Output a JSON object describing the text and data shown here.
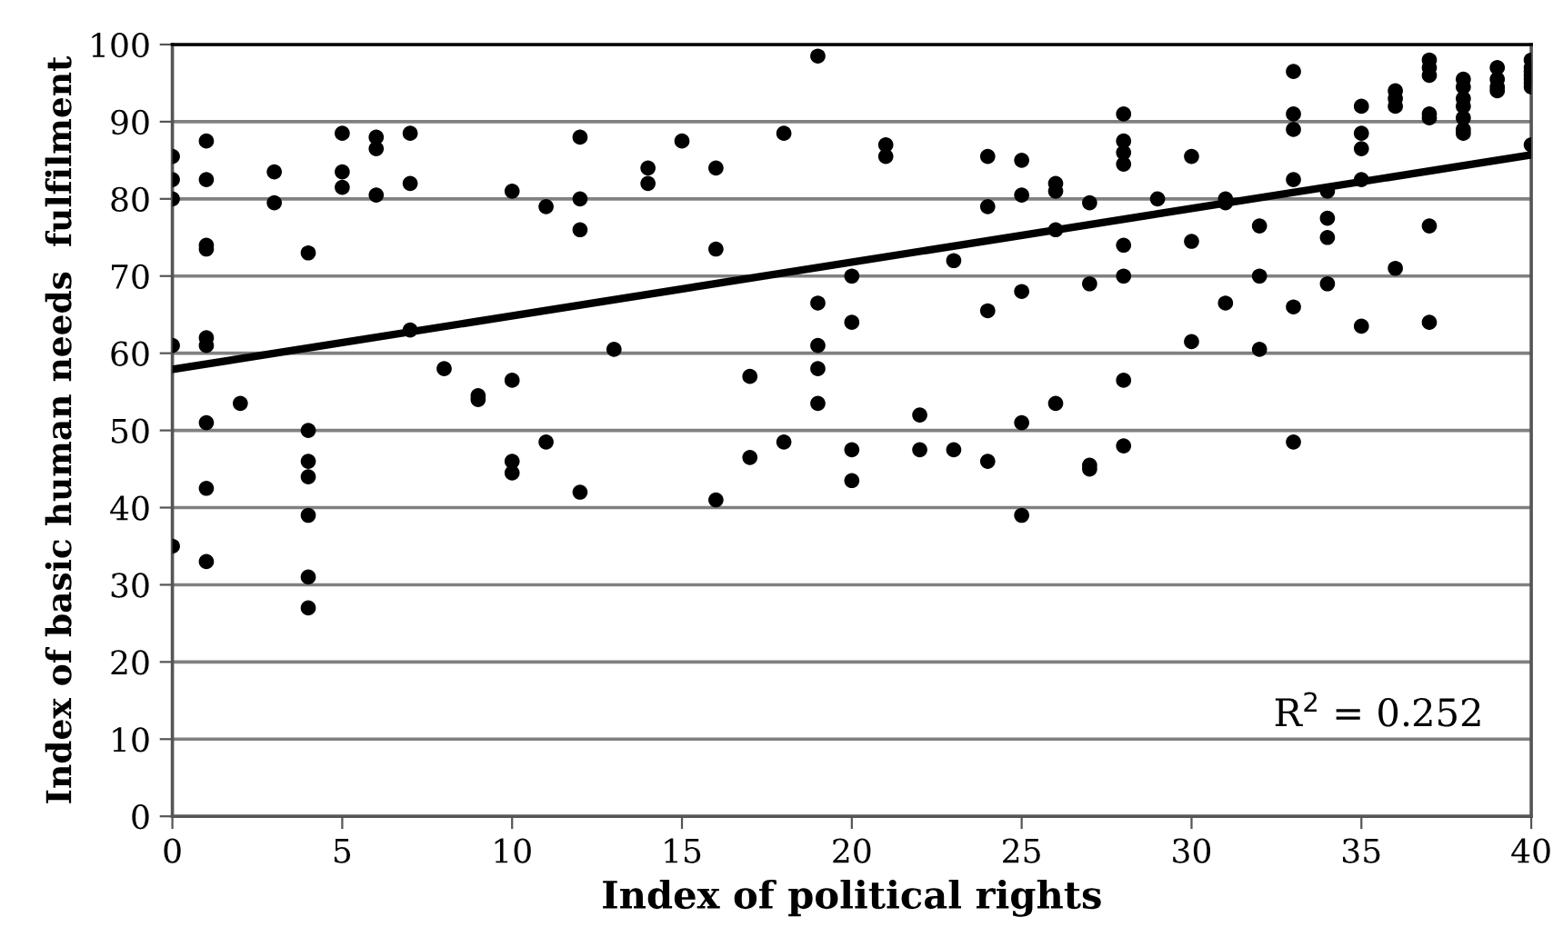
{
  "chart_data": {
    "type": "scatter",
    "xlabel": "Index of political rights",
    "ylabel": "Index of basic human needs  fulfilment",
    "xlim": [
      0,
      40
    ],
    "xticks": [
      0,
      5,
      10,
      15,
      20,
      25,
      30,
      35,
      40
    ],
    "ylim": [
      0,
      100
    ],
    "yticks": [
      0,
      10,
      20,
      30,
      40,
      50,
      60,
      70,
      80,
      90,
      100
    ],
    "grid": "y",
    "marker": "circle",
    "annotations": [
      "R$^{2}$ = 0.252"
    ],
    "series": [
      {
        "color": "#000000",
        "x": [
          0,
          0,
          0,
          0,
          0,
          1,
          1,
          1,
          1,
          1,
          1,
          1,
          1,
          1,
          2,
          3,
          3,
          4,
          4,
          4,
          4,
          4,
          4,
          4,
          5,
          5,
          5,
          6,
          6,
          6,
          7,
          7,
          7,
          8,
          9,
          9,
          10,
          10,
          10,
          10,
          11,
          11,
          12,
          12,
          12,
          12,
          13,
          14,
          14,
          15,
          16,
          16,
          16,
          17,
          17,
          18,
          18,
          19,
          19,
          19,
          19,
          19,
          20,
          20,
          20,
          20,
          21,
          21,
          22,
          22,
          23,
          23,
          24,
          24,
          24,
          24,
          25,
          25,
          25,
          25,
          25,
          26,
          26,
          26,
          26,
          27,
          27,
          27,
          27,
          28,
          28,
          28,
          28,
          28,
          28,
          28,
          28,
          29,
          30,
          30,
          30,
          31,
          31,
          31,
          32,
          32,
          32,
          33,
          33,
          33,
          33,
          33,
          33,
          34,
          34,
          34,
          34,
          35,
          35,
          35,
          35,
          35,
          36,
          36,
          36,
          36,
          37,
          37,
          37,
          37,
          37,
          37,
          37,
          38,
          38,
          38,
          38,
          38,
          38,
          38,
          39,
          39,
          39,
          39,
          40,
          40,
          40,
          40,
          40,
          40,
          40,
          40
        ],
        "values": [
          85.5,
          82.5,
          80,
          61,
          35,
          87.5,
          82.5,
          74,
          73.5,
          62,
          61,
          51,
          42.5,
          33,
          53.5,
          83.5,
          79.5,
          73,
          50,
          46,
          44,
          39,
          31,
          27,
          88.5,
          83.5,
          81.5,
          88,
          86.5,
          80.5,
          88.5,
          82,
          63,
          58,
          54.5,
          54,
          81,
          56.5,
          46,
          44.5,
          79,
          48.5,
          88,
          80,
          76,
          42,
          60.5,
          84,
          82,
          87.5,
          84,
          73.5,
          41,
          57,
          46.5,
          88.5,
          48.5,
          98.5,
          66.5,
          61,
          58,
          53.5,
          70,
          64,
          47.5,
          43.5,
          87,
          85.5,
          52,
          47.5,
          72,
          47.5,
          85.5,
          79,
          65.5,
          46,
          85,
          80.5,
          68,
          51,
          39,
          82,
          81,
          76,
          53.5,
          79.5,
          69,
          45.5,
          45,
          91,
          87.5,
          86,
          84.5,
          74,
          70,
          56.5,
          48,
          80,
          85.5,
          74.5,
          61.5,
          80,
          79.5,
          66.5,
          76.5,
          70,
          60.5,
          96.5,
          91,
          89,
          82.5,
          66,
          48.5,
          81,
          77.5,
          75,
          69,
          92,
          88.5,
          86.5,
          82.5,
          63.5,
          94,
          93,
          92,
          71,
          98,
          97,
          96,
          91,
          90.5,
          76.5,
          64,
          95.5,
          94.5,
          93,
          92,
          90.5,
          89,
          88.5,
          97,
          95.5,
          94.5,
          94,
          98,
          97,
          96.5,
          96,
          95.5,
          95,
          94.5,
          87
        ]
      },
      {
        "type": "line",
        "color": "#000000",
        "marker": "none",
        "x": [
          0,
          40
        ],
        "values": [
          57.9,
          85.7
        ]
      }
    ]
  }
}
